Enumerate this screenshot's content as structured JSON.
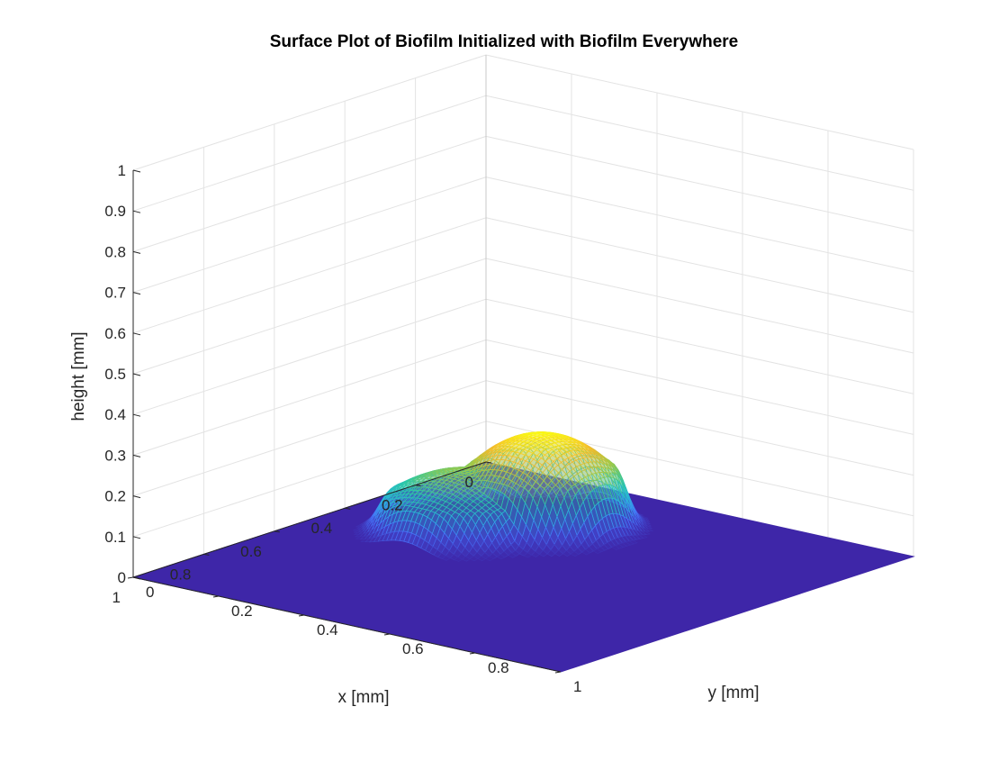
{
  "chart_data": {
    "type": "surface",
    "title": "Surface Plot of Biofilm Initialized with Biofilm Everywhere",
    "xlabel": "x [mm]",
    "ylabel": "y [mm]",
    "zlabel": "height [mm]",
    "xlim": [
      0,
      1
    ],
    "ylim": [
      0,
      1
    ],
    "zlim": [
      0,
      1
    ],
    "x_ticks": [
      "0",
      "0.2",
      "0.4",
      "0.6",
      "0.8",
      "1"
    ],
    "y_ticks": [
      "0",
      "0.2",
      "0.4",
      "0.6",
      "0.8",
      "1"
    ],
    "z_ticks": [
      "0",
      "0.1",
      "0.2",
      "0.3",
      "0.4",
      "0.5",
      "0.6",
      "0.7",
      "0.8",
      "0.9",
      "1"
    ],
    "grid": true,
    "colormap": "parula",
    "colormap_colors": [
      "#3e26a8",
      "#4772fa",
      "#2ab6dd",
      "#2bc8a2",
      "#a2c945",
      "#f5ba2d",
      "#f9fb15"
    ],
    "baseline_height": 0,
    "peak_height": 0.23,
    "bump_center": {
      "x": 0.32,
      "y": 0.32
    },
    "bump_components": [
      {
        "x": 0.28,
        "y": 0.36,
        "height": 0.23
      },
      {
        "x": 0.39,
        "y": 0.27,
        "height": 0.15
      }
    ]
  }
}
